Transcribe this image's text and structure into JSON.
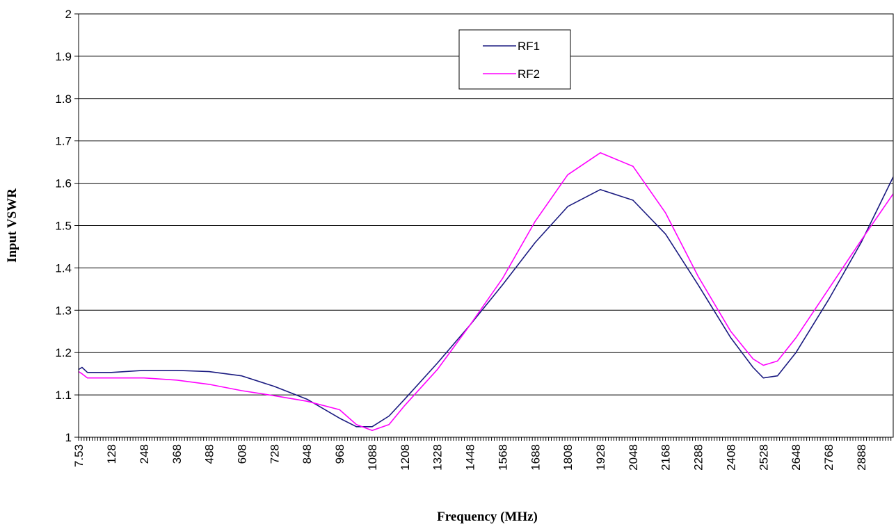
{
  "chart_data": {
    "type": "line",
    "xlabel": "Frequency (MHz)",
    "ylabel": "Input VSWR",
    "x_tick_labels": [
      "7.53",
      "128",
      "248",
      "368",
      "488",
      "608",
      "728",
      "848",
      "968",
      "1088",
      "1208",
      "1328",
      "1448",
      "1568",
      "1688",
      "1808",
      "1928",
      "2048",
      "2168",
      "2288",
      "2408",
      "2528",
      "2648",
      "2768",
      "2888"
    ],
    "x_tick_start": 7.53,
    "xlim": [
      7.53,
      3006
    ],
    "ylim": [
      1,
      2
    ],
    "yticks": [
      1,
      1.1,
      1.2,
      1.3,
      1.4,
      1.5,
      1.6,
      1.7,
      1.8,
      1.9,
      2
    ],
    "ytick_labels": [
      "1",
      "1.1",
      "1.2",
      "1.3",
      "1.4",
      "1.5",
      "1.6",
      "1.7",
      "1.8",
      "1.9",
      "2"
    ],
    "grid": true,
    "legend_position": "top-center",
    "x": [
      7.53,
      20,
      40,
      128,
      248,
      368,
      488,
      608,
      728,
      848,
      968,
      1030,
      1088,
      1150,
      1208,
      1328,
      1448,
      1568,
      1688,
      1808,
      1928,
      2048,
      2168,
      2288,
      2408,
      2490,
      2528,
      2580,
      2648,
      2768,
      2888,
      3006
    ],
    "series": [
      {
        "name": "RF1",
        "color": "#1a1a80",
        "values": [
          1.16,
          1.165,
          1.153,
          1.153,
          1.158,
          1.158,
          1.155,
          1.145,
          1.12,
          1.09,
          1.045,
          1.025,
          1.025,
          1.05,
          1.09,
          1.175,
          1.265,
          1.36,
          1.46,
          1.545,
          1.585,
          1.56,
          1.48,
          1.36,
          1.235,
          1.165,
          1.14,
          1.145,
          1.2,
          1.325,
          1.46,
          1.615
        ]
      },
      {
        "name": "RF2",
        "color": "#ff00ff",
        "values": [
          1.155,
          1.15,
          1.14,
          1.14,
          1.14,
          1.135,
          1.125,
          1.11,
          1.098,
          1.085,
          1.065,
          1.03,
          1.016,
          1.03,
          1.075,
          1.16,
          1.265,
          1.375,
          1.51,
          1.62,
          1.672,
          1.64,
          1.53,
          1.38,
          1.25,
          1.185,
          1.17,
          1.18,
          1.235,
          1.35,
          1.465,
          1.575
        ]
      }
    ]
  }
}
